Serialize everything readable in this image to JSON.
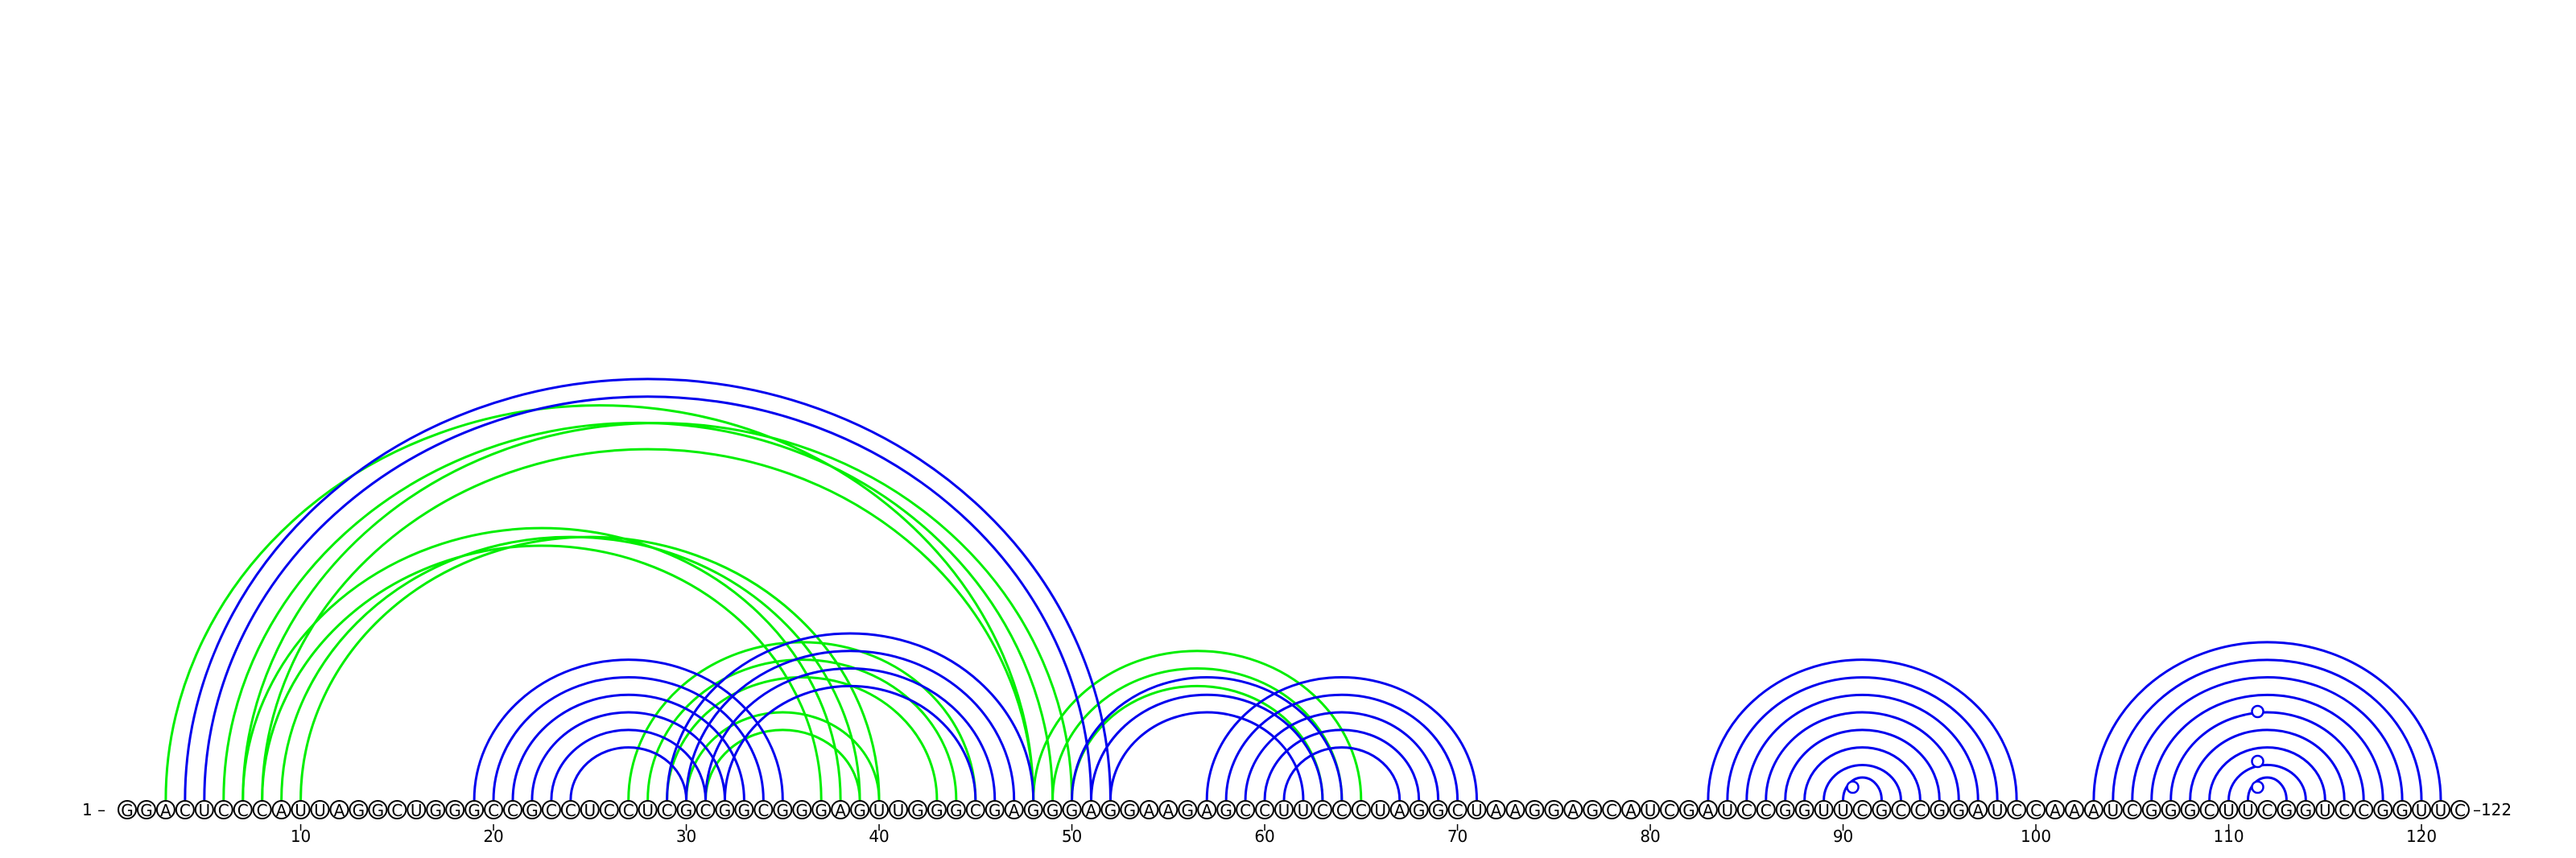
{
  "sequence": "GGACUCCCAUUAGGCUGGGCCGCCUCCUCGCGGCGGGAGUUGGGCGAGGGAGGAAGAGCCUUCCCUAGGCUAAGGAGCAUCGAUCCGGUUCGCCGGAUCCAAAUCGGGCUUCGGUCCGGUUC",
  "start_label": "1 –",
  "end_label": "–122",
  "ticks": [
    "10",
    "20",
    "30",
    "40",
    "50",
    "60",
    "70",
    "80",
    "90",
    "100",
    "110",
    "120"
  ],
  "colors": {
    "blue": "#0000ee",
    "green": "#00ee00"
  },
  "chart_data": {
    "type": "arc-diagram",
    "length": 122,
    "tick_positions": [
      10,
      20,
      30,
      40,
      50,
      60,
      70,
      80,
      90,
      100,
      110,
      120
    ],
    "blue_pairs": [
      [
        4,
        52
      ],
      [
        5,
        51
      ],
      [
        19,
        35
      ],
      [
        20,
        34
      ],
      [
        21,
        33
      ],
      [
        22,
        32
      ],
      [
        23,
        31
      ],
      [
        24,
        30
      ],
      [
        29,
        48
      ],
      [
        30,
        47
      ],
      [
        31,
        46
      ],
      [
        32,
        45
      ],
      [
        50,
        64
      ],
      [
        51,
        63
      ],
      [
        52,
        62
      ],
      [
        57,
        71
      ],
      [
        58,
        70
      ],
      [
        59,
        69
      ],
      [
        60,
        68
      ],
      [
        61,
        67
      ],
      [
        83,
        99
      ],
      [
        84,
        98
      ],
      [
        85,
        97
      ],
      [
        86,
        96
      ],
      [
        87,
        95
      ],
      [
        88,
        94
      ],
      [
        89,
        93
      ],
      [
        90,
        92
      ],
      [
        103,
        121
      ],
      [
        104,
        120
      ],
      [
        105,
        119
      ],
      [
        106,
        118
      ],
      [
        107,
        117
      ],
      [
        108,
        116
      ],
      [
        109,
        115
      ],
      [
        110,
        114
      ],
      [
        111,
        113
      ]
    ],
    "green_pairs": [
      [
        3,
        48
      ],
      [
        6,
        49
      ],
      [
        7,
        50
      ],
      [
        8,
        48
      ],
      [
        7,
        38
      ],
      [
        8,
        37
      ],
      [
        9,
        39
      ],
      [
        10,
        40
      ],
      [
        27,
        45
      ],
      [
        28,
        44
      ],
      [
        29,
        43
      ],
      [
        30,
        40
      ],
      [
        31,
        39
      ],
      [
        48,
        65
      ],
      [
        49,
        64
      ],
      [
        50,
        63
      ]
    ],
    "loop_markers": [
      90,
      111,
      111,
      111
    ]
  }
}
